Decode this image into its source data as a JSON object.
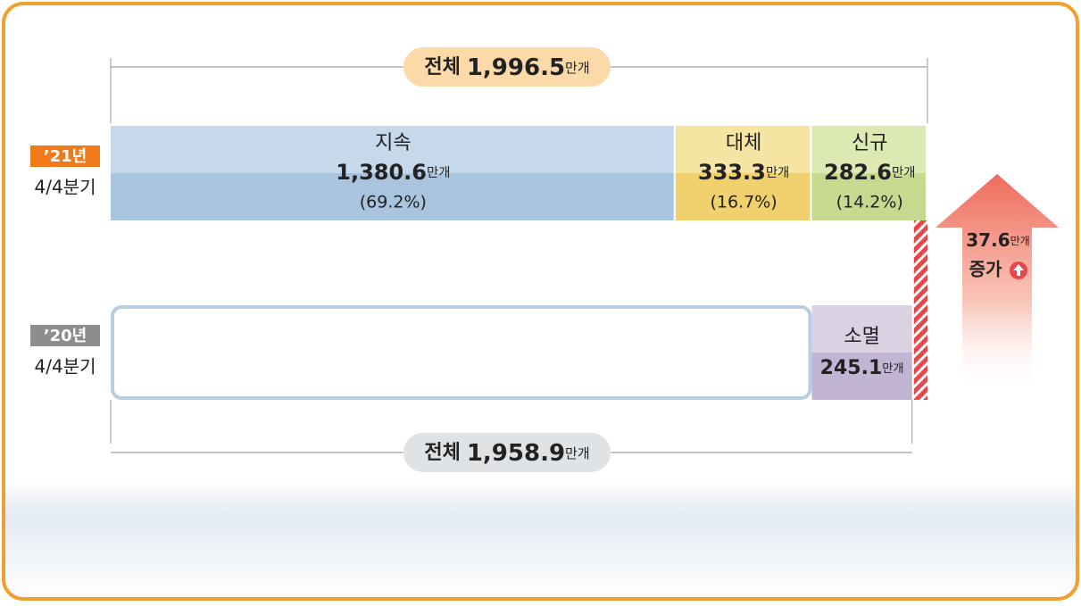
{
  "chart_data": {
    "type": "stacked_bar_h",
    "unit": "만개",
    "total_prefix": "전체",
    "rows": [
      {
        "tag": "’21년",
        "period": "4/4분기",
        "tag_color": "#f07a1a",
        "total": 1996.5,
        "total_label": "1,996.5",
        "total_color": "#fbd9a8",
        "segments": [
          {
            "name": "지속",
            "value": 1380.6,
            "value_label": "1,380.6",
            "share": 69.2,
            "share_label": "(69.2%)",
            "colors": [
              "#c5d9ea",
              "#a8c4de"
            ]
          },
          {
            "name": "대체",
            "value": 333.3,
            "value_label": "333.3",
            "share": 16.7,
            "share_label": "(16.7%)",
            "colors": [
              "#f6e5a2",
              "#f1d06e"
            ]
          },
          {
            "name": "신규",
            "value": 282.6,
            "value_label": "282.6",
            "share": 14.2,
            "share_label": "(14.2%)",
            "colors": [
              "#dde9b3",
              "#c7d98f"
            ]
          }
        ]
      },
      {
        "tag": "’20년",
        "period": "4/4분기",
        "tag_color": "#8d8d8d",
        "total": 1958.9,
        "total_label": "1,958.9",
        "total_color": "#dfe3e6",
        "segments": [
          {
            "name": "소멸",
            "value": 245.1,
            "value_label": "245.1",
            "colors": [
              "#dad1e3",
              "#c2b5d3"
            ]
          }
        ]
      }
    ],
    "increase": {
      "value": 37.6,
      "value_label": "37.6",
      "text": "증가",
      "color": "#e8474a"
    }
  }
}
